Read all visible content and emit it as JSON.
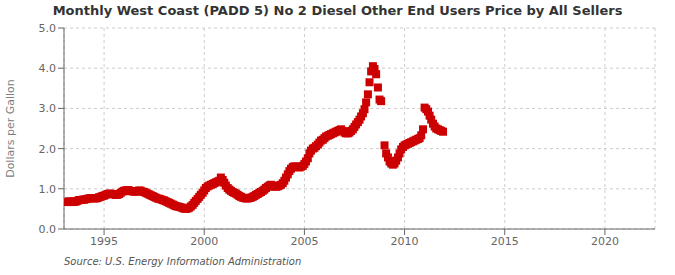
{
  "chart_data": {
    "type": "scatter",
    "title": "Monthly West Coast (PADD 5) No 2 Diesel Other End Users Price by All Sellers",
    "ylabel": "Dollars per Gallon",
    "annotations": [
      "Source: U.S. Energy Information Administration"
    ],
    "color": "#cc0000",
    "marker": "square",
    "grid": true,
    "xlim": [
      1993.0,
      2022.5
    ],
    "ylim": [
      0.0,
      5.0
    ],
    "xticks": [
      1995,
      2000,
      2005,
      2010,
      2015,
      2020
    ],
    "yticks": [
      {
        "value": 0,
        "label": "0.0"
      },
      {
        "value": 1,
        "label": "1.0"
      },
      {
        "value": 2,
        "label": "2.0"
      },
      {
        "value": 3,
        "label": "3.0"
      },
      {
        "value": 4,
        "label": "4.0"
      },
      {
        "value": 5,
        "label": "5.0"
      }
    ],
    "x": [
      1993.17,
      1993.25,
      1993.33,
      1993.42,
      1993.5,
      1993.58,
      1993.67,
      1993.75,
      1993.83,
      1993.92,
      1994.0,
      1994.08,
      1994.17,
      1994.25,
      1994.33,
      1994.42,
      1994.5,
      1994.58,
      1994.67,
      1994.75,
      1994.83,
      1994.92,
      1995.0,
      1995.08,
      1995.17,
      1995.25,
      1995.33,
      1995.42,
      1995.5,
      1995.58,
      1995.67,
      1995.75,
      1995.83,
      1995.92,
      1996.0,
      1996.08,
      1996.17,
      1996.25,
      1996.33,
      1996.42,
      1996.5,
      1996.58,
      1996.67,
      1996.75,
      1996.83,
      1996.92,
      1997.0,
      1997.08,
      1997.17,
      1997.25,
      1997.33,
      1997.42,
      1997.5,
      1997.58,
      1997.67,
      1997.75,
      1997.83,
      1997.92,
      1998.0,
      1998.08,
      1998.17,
      1998.25,
      1998.33,
      1998.42,
      1998.5,
      1998.58,
      1998.67,
      1998.75,
      1998.83,
      1998.92,
      1999.0,
      1999.08,
      1999.17,
      1999.25,
      1999.33,
      1999.42,
      1999.5,
      1999.58,
      1999.67,
      1999.75,
      1999.83,
      1999.92,
      2000.0,
      2000.08,
      2000.17,
      2000.25,
      2000.33,
      2000.42,
      2000.5,
      2000.58,
      2000.67,
      2000.75,
      2000.83,
      2000.92,
      2001.0,
      2001.08,
      2001.17,
      2001.25,
      2001.33,
      2001.42,
      2001.5,
      2001.58,
      2001.67,
      2001.75,
      2001.83,
      2001.92,
      2002.0,
      2002.08,
      2002.17,
      2002.25,
      2002.33,
      2002.42,
      2002.5,
      2002.58,
      2002.67,
      2002.75,
      2002.83,
      2002.92,
      2003.0,
      2003.08,
      2003.17,
      2003.25,
      2003.33,
      2003.42,
      2003.5,
      2003.58,
      2003.67,
      2003.75,
      2003.83,
      2003.92,
      2004.0,
      2004.08,
      2004.17,
      2004.25,
      2004.33,
      2004.42,
      2004.5,
      2004.58,
      2004.67,
      2004.75,
      2004.83,
      2004.92,
      2005.0,
      2005.08,
      2005.17,
      2005.25,
      2005.33,
      2005.42,
      2005.5,
      2005.58,
      2005.67,
      2005.75,
      2005.83,
      2005.92,
      2006.0,
      2006.08,
      2006.17,
      2006.25,
      2006.33,
      2006.42,
      2006.5,
      2006.58,
      2006.67,
      2006.75,
      2006.83,
      2006.92,
      2007.0,
      2007.08,
      2007.17,
      2007.25,
      2007.33,
      2007.42,
      2007.5,
      2007.58,
      2007.67,
      2007.75,
      2007.83,
      2007.92,
      2008.0,
      2008.08,
      2008.17,
      2008.25,
      2008.33,
      2008.42,
      2008.5,
      2008.58,
      2008.67,
      2008.75,
      2008.83,
      2009.0,
      2009.08,
      2009.17,
      2009.25,
      2009.33,
      2009.42,
      2009.5,
      2009.58,
      2009.67,
      2009.75,
      2009.83,
      2009.92,
      2010.0,
      2010.08,
      2010.17,
      2010.25,
      2010.33,
      2010.42,
      2010.5,
      2010.58,
      2010.67,
      2010.75,
      2010.83,
      2010.92,
      2011.0,
      2011.08,
      2011.17,
      2011.25,
      2011.33,
      2011.42,
      2011.5,
      2011.58,
      2011.67,
      2011.75,
      2011.83,
      2011.92
    ],
    "values": [
      0.67,
      0.69,
      0.68,
      0.67,
      0.68,
      0.68,
      0.7,
      0.72,
      0.72,
      0.73,
      0.73,
      0.74,
      0.75,
      0.76,
      0.77,
      0.77,
      0.76,
      0.76,
      0.77,
      0.79,
      0.8,
      0.82,
      0.83,
      0.85,
      0.87,
      0.88,
      0.88,
      0.87,
      0.86,
      0.85,
      0.85,
      0.87,
      0.9,
      0.93,
      0.95,
      0.96,
      0.97,
      0.96,
      0.94,
      0.94,
      0.93,
      0.93,
      0.94,
      0.96,
      0.95,
      0.93,
      0.92,
      0.9,
      0.88,
      0.86,
      0.84,
      0.82,
      0.8,
      0.78,
      0.76,
      0.75,
      0.74,
      0.72,
      0.71,
      0.69,
      0.67,
      0.65,
      0.63,
      0.61,
      0.59,
      0.57,
      0.56,
      0.55,
      0.54,
      0.52,
      0.51,
      0.5,
      0.51,
      0.53,
      0.56,
      0.6,
      0.65,
      0.7,
      0.75,
      0.8,
      0.85,
      0.9,
      0.96,
      1.02,
      1.06,
      1.08,
      1.1,
      1.12,
      1.14,
      1.16,
      1.18,
      1.2,
      1.28,
      1.22,
      1.15,
      1.08,
      1.02,
      0.98,
      0.95,
      0.92,
      0.9,
      0.88,
      0.85,
      0.82,
      0.8,
      0.78,
      0.77,
      0.76,
      0.76,
      0.77,
      0.78,
      0.8,
      0.82,
      0.85,
      0.87,
      0.9,
      0.92,
      0.95,
      0.98,
      1.02,
      1.05,
      1.08,
      1.1,
      1.08,
      1.06,
      1.05,
      1.06,
      1.08,
      1.1,
      1.14,
      1.2,
      1.28,
      1.36,
      1.44,
      1.5,
      1.54,
      1.56,
      1.55,
      1.54,
      1.53,
      1.55,
      1.57,
      1.62,
      1.68,
      1.76,
      1.88,
      1.95,
      2.0,
      2.02,
      2.06,
      2.1,
      2.15,
      2.2,
      2.22,
      2.26,
      2.3,
      2.32,
      2.34,
      2.36,
      2.38,
      2.4,
      2.42,
      2.44,
      2.46,
      2.48,
      2.44,
      2.4,
      2.38,
      2.38,
      2.4,
      2.44,
      2.48,
      2.54,
      2.6,
      2.66,
      2.72,
      2.8,
      2.88,
      2.98,
      3.15,
      3.35,
      3.65,
      3.92,
      4.05,
      3.98,
      3.85,
      3.52,
      3.22,
      3.18,
      2.08,
      1.88,
      1.78,
      1.68,
      1.63,
      1.6,
      1.63,
      1.7,
      1.78,
      1.88,
      1.98,
      2.04,
      2.08,
      2.1,
      2.12,
      2.14,
      2.16,
      2.18,
      2.2,
      2.22,
      2.24,
      2.26,
      2.33,
      2.48,
      3.02,
      2.98,
      2.92,
      2.82,
      2.72,
      2.62,
      2.55,
      2.5,
      2.48,
      2.46,
      2.44,
      2.42
    ]
  }
}
